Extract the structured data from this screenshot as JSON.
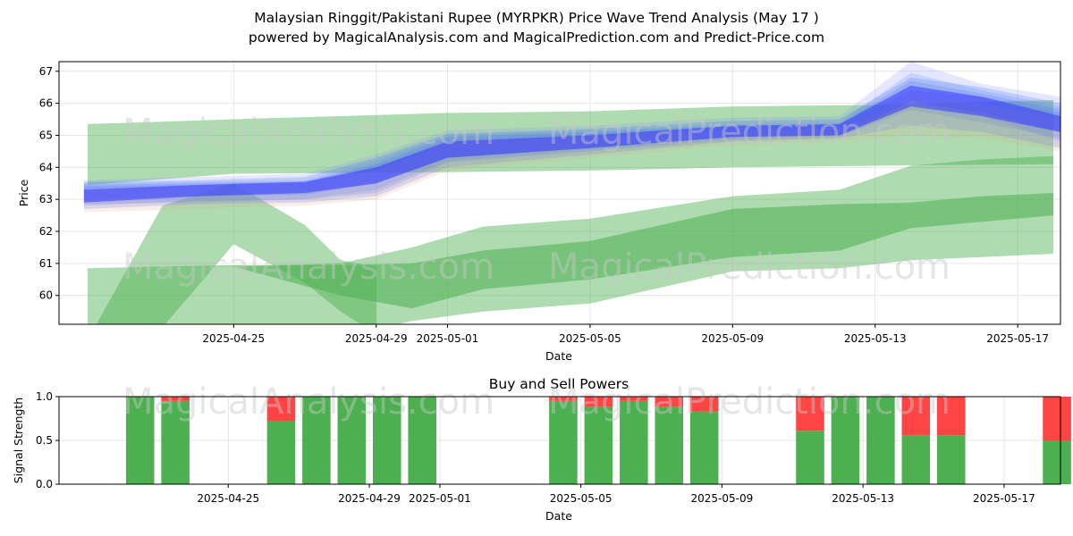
{
  "title_line1": "Malaysian Ringgit/Pakistani Rupee (MYRPKR) Price Wave Trend Analysis (May 17 )",
  "title_line2": "powered by MagicalAnalysis.com and MagicalPrediction.com and Predict-Price.com",
  "watermarks": [
    "MagicalAnalysis.com",
    "MagicalPrediction.com"
  ],
  "colors": {
    "green_band": "#4caf50",
    "blue_band": "#3a3aff",
    "buy_bar": "#4caf50",
    "sell_bar": "#ff4444",
    "grid": "#e6e6e6"
  },
  "chart_data": [
    {
      "type": "area",
      "title": "",
      "xlabel": "Date",
      "ylabel": "Price",
      "ylim": [
        59.1,
        67.3
      ],
      "yticks": [
        60,
        61,
        62,
        63,
        64,
        65,
        66,
        67
      ],
      "xlim_days": [
        -2.9,
        25.2
      ],
      "xticks": [
        {
          "day": 2,
          "label": "2025-04-25"
        },
        {
          "day": 6,
          "label": "2025-04-29"
        },
        {
          "day": 8,
          "label": "2025-05-01"
        },
        {
          "day": 12,
          "label": "2025-05-05"
        },
        {
          "day": 16,
          "label": "2025-05-09"
        },
        {
          "day": 20,
          "label": "2025-05-13"
        },
        {
          "day": 24,
          "label": "2025-05-17"
        }
      ],
      "grid": true,
      "green_bands": [
        {
          "name": "upper outer band",
          "opacity": 0.45,
          "points": [
            [
              -2.1,
              65.35,
              63.45
            ],
            [
              2,
              65.5,
              63.8
            ],
            [
              8,
              65.7,
              63.85
            ],
            [
              12,
              65.75,
              63.9
            ],
            [
              16,
              65.9,
              64.0
            ],
            [
              20,
              65.95,
              64.05
            ],
            [
              25,
              66.1,
              64.1
            ]
          ]
        },
        {
          "name": "lower outer band",
          "opacity": 0.45,
          "points": [
            [
              -2.1,
              60.85,
              58.6
            ],
            [
              2,
              60.9,
              58.5
            ],
            [
              5,
              61.0,
              58.7
            ],
            [
              7,
              61.5,
              59.2
            ],
            [
              9,
              62.15,
              59.5
            ],
            [
              12,
              62.4,
              59.75
            ],
            [
              16,
              63.1,
              60.75
            ],
            [
              19,
              63.3,
              60.85
            ],
            [
              21,
              64.05,
              61.1
            ],
            [
              23,
              64.25,
              61.2
            ],
            [
              25,
              64.35,
              61.3
            ]
          ]
        },
        {
          "name": "lower inner band",
          "opacity": 0.55,
          "points": [
            [
              -2.1,
              60.85,
              60.85
            ],
            [
              2,
              60.95,
              60.9
            ],
            [
              5,
              60.95,
              60.0
            ],
            [
              7,
              61.0,
              59.6
            ],
            [
              9,
              61.4,
              60.2
            ],
            [
              12,
              61.7,
              60.5
            ],
            [
              16,
              62.7,
              61.2
            ],
            [
              19,
              62.85,
              61.4
            ],
            [
              21,
              62.9,
              62.1
            ],
            [
              23,
              63.1,
              62.3
            ],
            [
              25,
              63.2,
              62.5
            ]
          ]
        },
        {
          "name": "rising wave band",
          "opacity": 0.45,
          "points": [
            [
              -2.1,
              58.6,
              58.6
            ],
            [
              0,
              62.8,
              59.0
            ],
            [
              2,
              63.5,
              61.6
            ],
            [
              4,
              62.2,
              60.4
            ],
            [
              5,
              61.1,
              59.5
            ],
            [
              6,
              60.9,
              58.8
            ]
          ]
        }
      ],
      "blue_bands": [
        {
          "name": "forecast wave 1",
          "points": [
            [
              -2.2,
              63.5,
              62.85
            ],
            [
              1,
              63.55,
              62.9
            ],
            [
              4,
              63.6,
              63.0
            ],
            [
              6,
              64.2,
              63.3
            ],
            [
              8,
              65.0,
              64.2
            ],
            [
              12,
              65.15,
              64.55
            ],
            [
              16,
              65.35,
              64.9
            ],
            [
              19,
              65.4,
              65.0
            ],
            [
              21,
              66.95,
              66.0
            ],
            [
              23,
              66.4,
              65.6
            ],
            [
              25.2,
              65.9,
              64.8
            ]
          ]
        },
        {
          "name": "forecast wave 2",
          "points": [
            [
              -2.2,
              63.4,
              62.7
            ],
            [
              1,
              63.45,
              62.85
            ],
            [
              4,
              63.5,
              62.9
            ],
            [
              6,
              64.0,
              63.1
            ],
            [
              8,
              64.85,
              64.0
            ],
            [
              12,
              65.05,
              64.4
            ],
            [
              16,
              65.25,
              64.8
            ],
            [
              19,
              65.3,
              64.9
            ],
            [
              21,
              66.4,
              65.3
            ],
            [
              23,
              66.2,
              65.1
            ],
            [
              25.2,
              65.7,
              64.6
            ]
          ]
        },
        {
          "name": "forecast wave 3",
          "points": [
            [
              -2.2,
              63.6,
              62.9
            ],
            [
              1,
              63.7,
              63.05
            ],
            [
              4,
              63.8,
              63.2
            ],
            [
              6,
              64.4,
              63.6
            ],
            [
              8,
              65.15,
              64.45
            ],
            [
              12,
              65.3,
              64.7
            ],
            [
              16,
              65.55,
              65.0
            ],
            [
              19,
              65.6,
              65.1
            ],
            [
              21,
              67.3,
              66.1
            ],
            [
              23,
              66.6,
              65.8
            ],
            [
              25.2,
              66.2,
              65.2
            ]
          ]
        },
        {
          "name": "forecast wave 4",
          "points": [
            [
              -2.2,
              63.45,
              62.8
            ],
            [
              1,
              63.5,
              62.95
            ],
            [
              4,
              63.55,
              63.0
            ],
            [
              6,
              64.1,
              63.2
            ],
            [
              8,
              64.95,
              64.15
            ],
            [
              12,
              65.1,
              64.5
            ],
            [
              16,
              65.3,
              64.85
            ],
            [
              19,
              65.35,
              64.95
            ],
            [
              21,
              66.7,
              65.8
            ],
            [
              23,
              66.3,
              65.4
            ],
            [
              25.2,
              65.8,
              64.9
            ]
          ]
        },
        {
          "name": "forecast wave 5",
          "points": [
            [
              -2.2,
              63.3,
              62.6
            ],
            [
              1,
              63.35,
              62.7
            ],
            [
              4,
              63.4,
              62.8
            ],
            [
              6,
              63.9,
              63.0
            ],
            [
              8,
              64.75,
              63.9
            ],
            [
              12,
              64.95,
              64.3
            ],
            [
              16,
              65.15,
              64.7
            ],
            [
              19,
              65.2,
              64.8
            ],
            [
              21,
              66.2,
              65.0
            ],
            [
              23,
              66.0,
              64.9
            ],
            [
              25.2,
              65.5,
              64.5
            ]
          ]
        },
        {
          "name": "forecast wave 6",
          "points": [
            [
              -2.2,
              63.55,
              63.0
            ],
            [
              1,
              63.6,
              63.1
            ],
            [
              4,
              63.7,
              63.15
            ],
            [
              6,
              64.3,
              63.5
            ],
            [
              8,
              65.05,
              64.3
            ],
            [
              12,
              65.2,
              64.6
            ],
            [
              16,
              65.45,
              64.95
            ],
            [
              19,
              65.5,
              65.0
            ],
            [
              21,
              66.8,
              66.05
            ],
            [
              23,
              66.5,
              65.7
            ],
            [
              25.2,
              66.0,
              65.1
            ]
          ]
        }
      ],
      "center_wave": {
        "name": "central trend",
        "points": [
          [
            -2.2,
            63.3,
            62.9
          ],
          [
            1,
            63.45,
            63.1
          ],
          [
            4,
            63.55,
            63.2
          ],
          [
            6,
            64.0,
            63.5
          ],
          [
            8,
            64.8,
            64.3
          ],
          [
            12,
            65.0,
            64.6
          ],
          [
            16,
            65.3,
            64.95
          ],
          [
            19,
            65.35,
            65.0
          ],
          [
            21,
            66.55,
            65.9
          ],
          [
            23,
            66.2,
            65.6
          ],
          [
            25.2,
            65.6,
            65.1
          ]
        ]
      }
    },
    {
      "type": "bar",
      "title": "Buy and Sell Powers",
      "xlabel": "Date",
      "ylabel": "Signal Strength",
      "ylim": [
        0,
        1
      ],
      "yticks": [
        {
          "value": 0.0,
          "label": "0.0"
        },
        {
          "value": 0.5,
          "label": "0.5"
        },
        {
          "value": 1.0,
          "label": "1.0"
        }
      ],
      "xlim_days": [
        -2.8,
        25.6
      ],
      "xticks": [
        {
          "day": 2,
          "label": "2025-04-25"
        },
        {
          "day": 6,
          "label": "2025-04-29"
        },
        {
          "day": 8,
          "label": "2025-05-01"
        },
        {
          "day": 12,
          "label": "2025-05-05"
        },
        {
          "day": 16,
          "label": "2025-05-09"
        },
        {
          "day": 20,
          "label": "2025-05-13"
        },
        {
          "day": 24,
          "label": "2025-05-17"
        }
      ],
      "grid": true,
      "bars": [
        {
          "day": 0,
          "buy": 1.0,
          "sell": 0.0
        },
        {
          "day": 1,
          "buy": 0.95,
          "sell": 0.05
        },
        {
          "day": 4,
          "buy": 0.72,
          "sell": 0.28
        },
        {
          "day": 5,
          "buy": 1.0,
          "sell": 0.0
        },
        {
          "day": 6,
          "buy": 1.0,
          "sell": 0.0
        },
        {
          "day": 7,
          "buy": 1.0,
          "sell": 0.0
        },
        {
          "day": 8,
          "buy": 1.0,
          "sell": 0.0
        },
        {
          "day": 12,
          "buy": 0.95,
          "sell": 0.05
        },
        {
          "day": 13,
          "buy": 0.88,
          "sell": 0.12
        },
        {
          "day": 14,
          "buy": 0.95,
          "sell": 0.05
        },
        {
          "day": 15,
          "buy": 0.88,
          "sell": 0.12
        },
        {
          "day": 16,
          "buy": 0.83,
          "sell": 0.17
        },
        {
          "day": 19,
          "buy": 0.61,
          "sell": 0.39
        },
        {
          "day": 20,
          "buy": 1.0,
          "sell": 0.0
        },
        {
          "day": 21,
          "buy": 1.0,
          "sell": 0.0
        },
        {
          "day": 22,
          "buy": 0.56,
          "sell": 0.44
        },
        {
          "day": 23,
          "buy": 0.56,
          "sell": 0.44
        },
        {
          "day": 26,
          "buy": 0.5,
          "sell": 0.5
        }
      ]
    }
  ]
}
